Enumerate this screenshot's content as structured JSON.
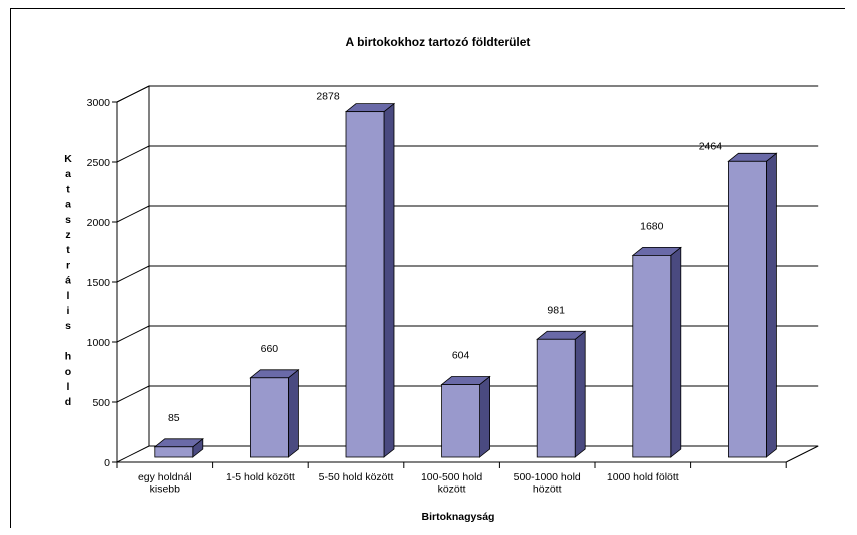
{
  "chart_data": {
    "type": "bar",
    "title": "A birtokokhoz tartozó földterület",
    "xlabel": "Birtoknagyság",
    "ylabel": "Kataszträlis hold",
    "ylabel_letters": [
      "K",
      "a",
      "t",
      "a",
      "s",
      "z",
      "t",
      "r",
      "á",
      "l",
      "i",
      "s",
      "",
      "h",
      "o",
      "l",
      "d"
    ],
    "categories": [
      [
        "egy holdnál",
        "kisebb"
      ],
      [
        "1-5 hold között"
      ],
      [
        "5-50 hold között"
      ],
      [
        "100-500 hold",
        "között"
      ],
      [
        "500-1000 hold",
        "hözött"
      ],
      [
        "1000 hold fölött"
      ],
      [
        ""
      ]
    ],
    "values": [
      85,
      660,
      2878,
      604,
      981,
      1680,
      2464
    ],
    "data_labels": [
      "85",
      "660",
      "2878",
      "604",
      "981",
      "1680",
      "2464"
    ],
    "yticks": [
      0,
      500,
      1000,
      1500,
      2000,
      2500,
      3000
    ],
    "ylim": [
      0,
      3000
    ],
    "grid": true,
    "bar_color": "#9999cc",
    "bar_side_color": "#4a4a80",
    "bar_top_color": "#6a6aa8"
  }
}
